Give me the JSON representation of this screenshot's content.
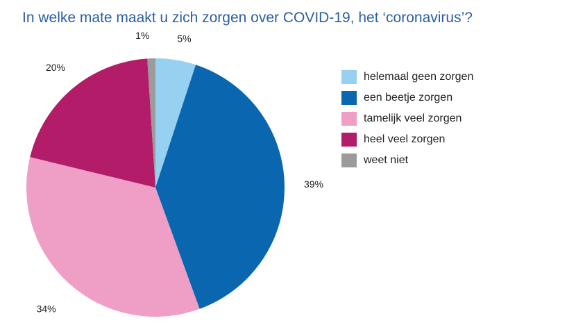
{
  "chart_data": {
    "type": "pie",
    "title": "In welke mate maakt u zich zorgen over COVID-19, het ‘coronavirus’?",
    "start": "top",
    "direction": "clockwise",
    "legend_position": "right",
    "slices": [
      {
        "label": "helemaal geen zorgen",
        "value": 5,
        "display": "5%",
        "color": "#97d1f2"
      },
      {
        "label": "een beetje zorgen",
        "value": 39,
        "display": "39%",
        "color": "#0b66b0"
      },
      {
        "label": "tamelijk veel zorgen",
        "value": 34,
        "display": "34%",
        "color": "#ef9fc6"
      },
      {
        "label": "heel veel zorgen",
        "value": 20,
        "display": "20%",
        "color": "#b31c68"
      },
      {
        "label": "weet niet",
        "value": 1,
        "display": "1%",
        "color": "#9b9b9b"
      }
    ]
  }
}
